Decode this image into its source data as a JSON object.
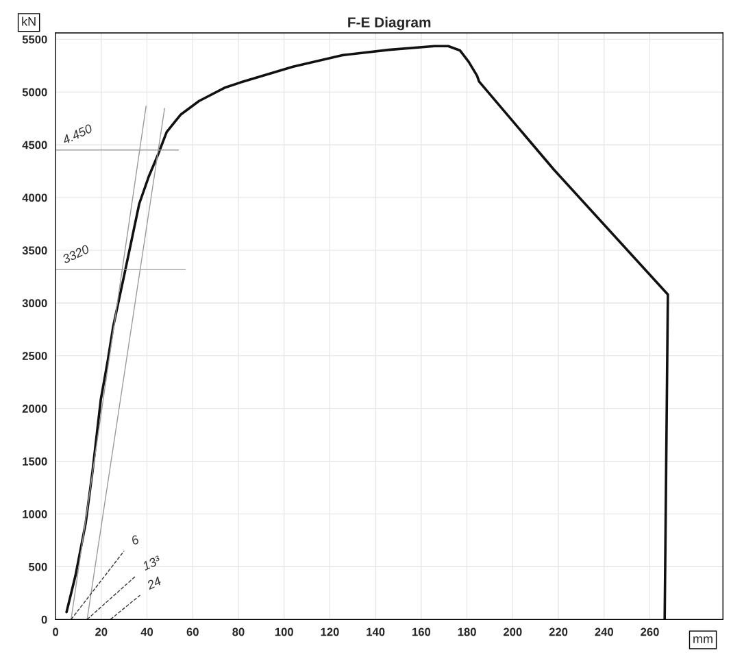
{
  "chart_data": {
    "type": "line",
    "title": "F-E Diagram",
    "xlabel": "mm",
    "ylabel": "kN",
    "xlim": [
      0,
      292
    ],
    "ylim": [
      0,
      5560
    ],
    "xticks": [
      0,
      20,
      40,
      60,
      80,
      100,
      120,
      140,
      160,
      180,
      200,
      220,
      240,
      260
    ],
    "yticks": [
      0,
      500,
      1000,
      1500,
      2000,
      2500,
      3000,
      3500,
      4000,
      4500,
      5000,
      5500
    ],
    "grid": true,
    "marker": "none",
    "series": [
      {
        "color": "#111111",
        "line_style": "solid",
        "x": [
          4.8,
          8.7,
          13.2,
          16.2,
          19.8,
          22.8,
          25.2,
          30.3,
          33.3,
          36.6,
          40.8,
          44.7,
          48.6,
          54.7,
          62.8,
          73.9,
          80.8,
          103.9,
          125.8,
          145.9,
          165.8,
          171.8,
          176.9,
          180.8,
          184.4,
          185.3,
          218,
          267.9,
          266.5
        ],
        "values": [
          70,
          415,
          915,
          1410,
          2085,
          2450,
          2775,
          3290,
          3600,
          3940,
          4200,
          4400,
          4620,
          4785,
          4915,
          5040,
          5090,
          5240,
          5350,
          5400,
          5435,
          5435,
          5395,
          5285,
          5155,
          5100,
          4265,
          3080,
          0
        ]
      },
      {
        "color": "#9a9a9a",
        "line_style": "solid",
        "x": [
          6.8,
          39.6
        ],
        "values": [
          0,
          4865
        ]
      },
      {
        "color": "#9a9a9a",
        "line_style": "solid",
        "x": [
          13.8,
          47.7
        ],
        "values": [
          0,
          4845
        ]
      },
      {
        "color": "#9a9a9a",
        "line_style": "solid",
        "x": [
          0,
          53.8
        ],
        "values": [
          4450,
          4450
        ]
      },
      {
        "color": "#9a9a9a",
        "line_style": "solid",
        "x": [
          0,
          56.8
        ],
        "values": [
          3320,
          3320
        ]
      },
      {
        "color": "#333333",
        "line_style": "dashed",
        "x": [
          6.8,
          30
        ],
        "values": [
          0,
          650
        ]
      },
      {
        "color": "#333333",
        "line_style": "dashed",
        "x": [
          13.8,
          35
        ],
        "values": [
          0,
          410
        ]
      },
      {
        "color": "#333333",
        "line_style": "dashed",
        "x": [
          24,
          37
        ],
        "values": [
          0,
          230
        ]
      }
    ],
    "annotations": [
      {
        "text": "4.450",
        "x": 0,
        "y": 4450
      },
      {
        "text": "3320",
        "x": 0,
        "y": 3320
      },
      {
        "text": "6",
        "x": 30,
        "y": 650
      },
      {
        "text": "13³",
        "x": 35,
        "y": 410
      },
      {
        "text": "24",
        "x": 37,
        "y": 230
      }
    ]
  }
}
